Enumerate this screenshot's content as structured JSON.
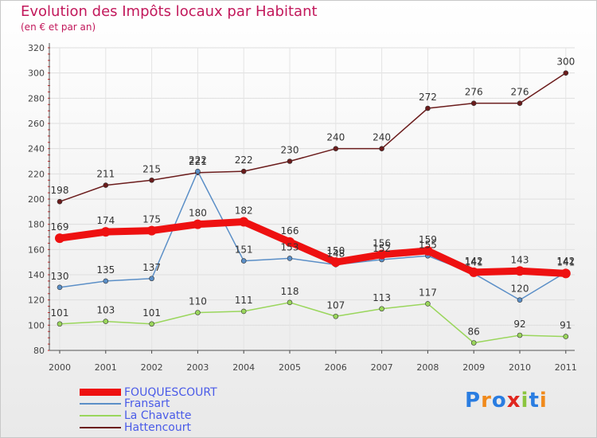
{
  "title": "Evolution des Impôts locaux par Habitant",
  "subtitle": "(en € et par an)",
  "logo_text": "Proxiti",
  "chart_data": {
    "type": "line",
    "title": "Evolution des Impôts locaux par Habitant",
    "subtitle": "(en € et par an)",
    "xlabel": "",
    "ylabel": "",
    "ylim": [
      80,
      320
    ],
    "yticks": [
      "80",
      "100",
      "120",
      "140",
      "160",
      "180",
      "200",
      "220",
      "240",
      "260",
      "280",
      "300",
      "320"
    ],
    "categories": [
      "2000",
      "2001",
      "2002",
      "2003",
      "2004",
      "2005",
      "2006",
      "2007",
      "2008",
      "2009",
      "2010",
      "2011"
    ],
    "grid": true,
    "legend_position": "bottom-left",
    "series": [
      {
        "name": "Hattencourt",
        "color": "#6b1c1c",
        "values": [
          198,
          211,
          215,
          221,
          222,
          230,
          240,
          240,
          272,
          276,
          276,
          300
        ]
      },
      {
        "name": "La Chavatte",
        "color": "#9ad65c",
        "values": [
          101,
          103,
          101,
          110,
          111,
          118,
          107,
          113,
          117,
          86,
          92,
          91
        ]
      },
      {
        "name": "Fransart",
        "color": "#5b8fc7",
        "values": [
          130,
          135,
          137,
          222,
          151,
          153,
          148,
          152,
          155,
          141,
          120,
          142
        ]
      },
      {
        "name": "FOUQUESCOURT",
        "color": "#ee1111",
        "values": [
          169,
          174,
          175,
          180,
          182,
          166,
          150,
          156,
          159,
          142,
          143,
          141
        ]
      }
    ],
    "legend": [
      "FOUQUESCOURT",
      "Fransart",
      "La Chavatte",
      "Hattencourt"
    ]
  }
}
